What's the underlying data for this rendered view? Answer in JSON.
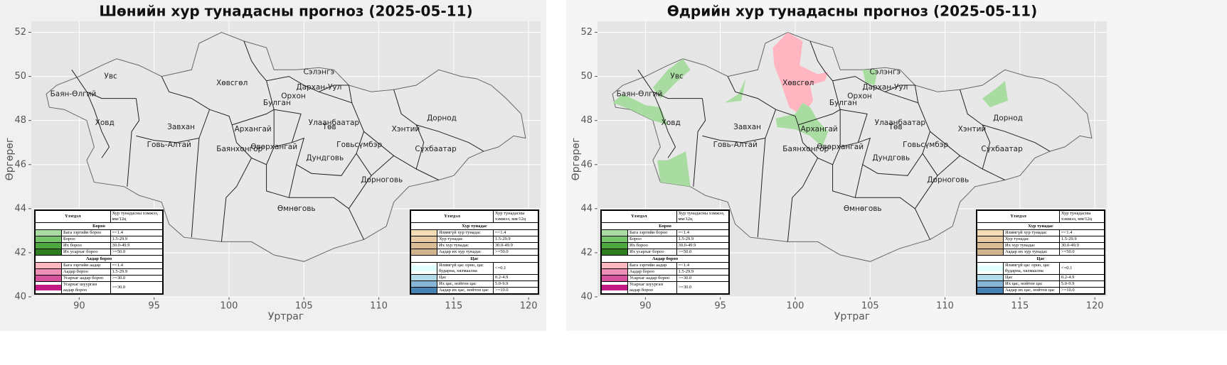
{
  "panels": [
    {
      "title": "Шөнийн хур тунадасны прогноз (2025-05-11)",
      "xlabel": "Уртраг",
      "ylabel": "Өргөрөг",
      "xlim": [
        86.8,
        120.8
      ],
      "ylim": [
        40,
        52.5
      ],
      "xticks": [
        90,
        95,
        100,
        105,
        110,
        115,
        120
      ],
      "yticks": [
        40,
        42,
        44,
        46,
        48,
        50,
        52
      ],
      "grid": true
    },
    {
      "title": "Өдрийн хур тунадасны прогноз (2025-05-11)",
      "xlabel": "Уртраг",
      "ylabel": "Өргөрөг",
      "xlim": [
        86.8,
        120.8
      ],
      "ylim": [
        40,
        52.5
      ],
      "xticks": [
        90,
        95,
        100,
        105,
        110,
        115,
        120
      ],
      "yticks": [
        40,
        42,
        44,
        46,
        48,
        50,
        52
      ],
      "grid": true
    }
  ],
  "provinces": [
    "Увс",
    "Баян-Өлгий",
    "Ховд",
    "Завхан",
    "Говь-Алтай",
    "Хөвсгөл",
    "Архангай",
    "Булган",
    "Орхон",
    "Сэлэнгэ",
    "Дархан-Уул",
    "Улаанбаатар",
    "Төв",
    "Баянхонгор",
    "Өвөрхангай",
    "Дундговь",
    "Өмнөговь",
    "Говьсүмбэр",
    "Хэнтий",
    "Дорнод",
    "Сүхбаатар",
    "Дорноговь"
  ],
  "legends": [
    {
      "corner": "lower left",
      "header": [
        "Үзэгдэл",
        "Хур тунадасны хэмжээ, мм/12ц"
      ],
      "sections": [
        {
          "title": "Бороо",
          "rows": [
            {
              "name": "Бага зэргийн бороо",
              "amount": "=<1.4",
              "color": "#a8dca0"
            },
            {
              "name": "Бороо",
              "amount": "1.5-29.9",
              "color": "#76c56a"
            },
            {
              "name": "Их бороо",
              "amount": "30.0-49.9",
              "color": "#4ea83f"
            },
            {
              "name": "Их усархаг бороо",
              "amount": ">=50.0",
              "color": "#2e7d1f"
            }
          ]
        },
        {
          "title": "Аадар бороо",
          "rows": [
            {
              "name": "Бага зэргийн аадар",
              "amount": "=<1.4",
              "color": "#ffb6c1"
            },
            {
              "name": "Аадар бороо",
              "amount": "1.5-29.9",
              "color": "#ee8fb8"
            },
            {
              "name": "Усархаг аадар бороо",
              "amount": ">=30.0",
              "color": "#d6529c"
            },
            {
              "name": "Усархаг шуурган аадар бороо",
              "amount": ">=30.0",
              "color": "#c41a86"
            }
          ]
        }
      ]
    },
    {
      "corner": "lower right",
      "header": [
        "Үзэгдэл",
        "Хур тунадасны хэмжээ, мм/12ц"
      ],
      "sections": [
        {
          "title": "Хур тунадас",
          "rows": [
            {
              "name": "Ялимгүй хур тунадас",
              "amount": "=<1.4",
              "color": "#f5deb3"
            },
            {
              "name": "Хур тунадас",
              "amount": "1.5-29.9",
              "color": "#e8cba3"
            },
            {
              "name": "Их хур тунадас",
              "amount": "30.0-49.9",
              "color": "#dbbc96"
            },
            {
              "name": "Аадар их хур тунадас",
              "amount": ">=50.0",
              "color": "#d2b48c"
            }
          ]
        },
        {
          "title": "Цас",
          "rows": [
            {
              "name": "Ялимгүй цас орно, цас бударна, хялмаална",
              "amount": "<=0.1",
              "color": "#e0ffff"
            },
            {
              "name": "Цас",
              "amount": "0.2-4.9",
              "color": "#b3dcea"
            },
            {
              "name": "Их цас, нойтон цас",
              "amount": "5.0-9.9",
              "color": "#86b6d6"
            },
            {
              "name": "Аадар их цас, нойтон цас",
              "amount": ">=10.0",
              "color": "#4682b4"
            }
          ]
        }
      ]
    }
  ]
}
